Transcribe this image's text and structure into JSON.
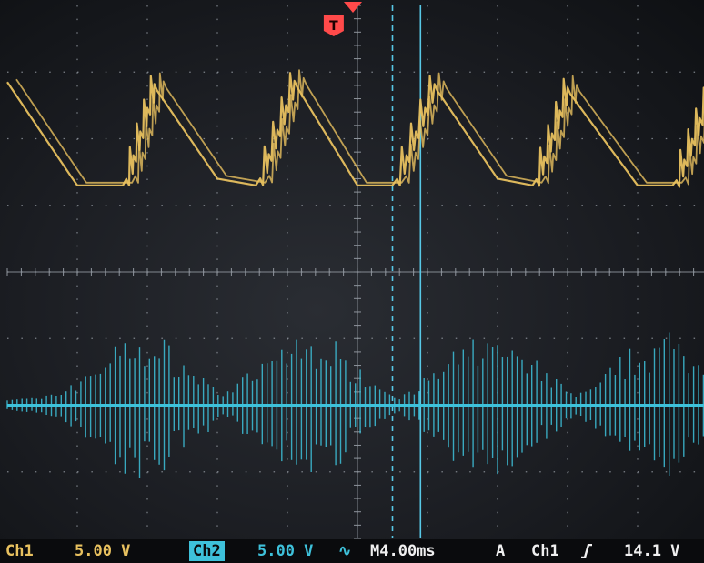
{
  "chart_data": {
    "type": "line",
    "title": "",
    "xlabel": "",
    "ylabel": "",
    "grid": true,
    "grid_divisions": {
      "x": 10,
      "y": 8
    },
    "series": [
      {
        "channel": "ch1",
        "color": "#e8c15f",
        "x_div": [
          0.0,
          0.9,
          1.0,
          1.65,
          2.1,
          3.0,
          3.55,
          4.1,
          5.0,
          5.5,
          6.1,
          7.0,
          7.5,
          8.0,
          9.0,
          9.5,
          10.0
        ],
        "y_div": [
          2.85,
          1.45,
          1.3,
          1.3,
          2.9,
          1.4,
          1.3,
          2.95,
          1.3,
          1.3,
          2.9,
          1.4,
          1.3,
          2.85,
          1.3,
          1.3,
          2.7
        ]
      },
      {
        "channel": "ch2",
        "color": "#3ec1da",
        "baseline_div": -2.0,
        "burst_centers_div": [
          1.9,
          4.3,
          6.9,
          9.4
        ],
        "burst_peak_amplitude_div": 1.1
      }
    ],
    "cursors": [
      {
        "type": "dashed",
        "x_div": 5.5,
        "color": "#58c8e6"
      },
      {
        "type": "solid",
        "x_div": 5.9,
        "color": "#58c8e6"
      }
    ],
    "trigger": {
      "marker": "T",
      "position_x_div": 4.7,
      "color": "#ff4a4a"
    }
  },
  "status_bar": {
    "ch1_label": "Ch1",
    "ch1_scale": "5.00 V",
    "ch2_label": "Ch2",
    "ch2_scale": "5.00 V",
    "ch2_coupling": "∿",
    "timebase": "M4.00ms",
    "acquire": "A",
    "trigger_source": "Ch1",
    "trigger_level": "14.1 V"
  },
  "colors": {
    "grid": "#8e949c",
    "ch1": "#e8c15f",
    "ch2": "#3ec1da",
    "trigger": "#ff4a4a"
  }
}
